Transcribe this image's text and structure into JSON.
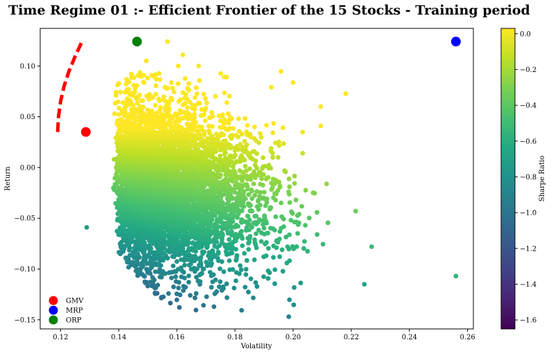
{
  "chart_data": {
    "type": "scatter",
    "title": "Time Regime 01 :- Efficient Frontier of the 15 Stocks - Training period",
    "xlabel": "Volatility",
    "ylabel": "Return",
    "xlim": [
      0.113,
      0.262
    ],
    "ylim": [
      -0.159,
      0.137
    ],
    "xticks": [
      0.12,
      0.14,
      0.16,
      0.18,
      0.2,
      0.22,
      0.24,
      0.26
    ],
    "xtick_labels": [
      "0.12",
      "0.14",
      "0.16",
      "0.18",
      "0.20",
      "0.22",
      "0.24",
      "0.26"
    ],
    "yticks": [
      0.1,
      0.05,
      0.0,
      -0.05,
      -0.1,
      -0.15
    ],
    "ytick_labels": [
      "0.10",
      "0.05",
      "0.00",
      "−0.05",
      "−0.10",
      "−0.15"
    ],
    "grid": false,
    "colormap": "viridis",
    "colorbar": {
      "label": "Sharpe Ratio",
      "range": [
        -1.65,
        0.03
      ],
      "ticks": [
        0.0,
        -0.2,
        -0.4,
        -0.6,
        -0.8,
        -1.0,
        -1.2,
        -1.4,
        -1.6
      ],
      "tick_labels": [
        "0.0",
        "−0.2",
        "−0.4",
        "−0.6",
        "−0.8",
        "−1.0",
        "−1.2",
        "−1.4",
        "−1.6"
      ]
    },
    "portfolio_cloud": {
      "description_of_shape": "random portfolios; dense core around volatility 0.14-0.18, return -0.10 to 0.07; sparse tail to volatility 0.227",
      "outliers": [
        {
          "x": 0.1568,
          "y": 0.124
        },
        {
          "x": 0.1621,
          "y": 0.111
        },
        {
          "x": 0.1495,
          "y": 0.105
        },
        {
          "x": 0.1605,
          "y": 0.1
        },
        {
          "x": 0.1675,
          "y": 0.1
        },
        {
          "x": 0.1925,
          "y": 0.079
        },
        {
          "x": 0.2095,
          "y": 0.06
        },
        {
          "x": 0.2095,
          "y": 0.041
        },
        {
          "x": 0.2215,
          "y": -0.043
        },
        {
          "x": 0.227,
          "y": -0.078
        },
        {
          "x": 0.2245,
          "y": -0.115
        },
        {
          "x": 0.256,
          "y": -0.107
        },
        {
          "x": 0.129,
          "y": -0.059
        },
        {
          "x": 0.1985,
          "y": -0.147
        }
      ]
    },
    "frontier": {
      "style": "red dashed",
      "color": "#ff0000",
      "points": [
        {
          "x": 0.119,
          "y": 0.035
        },
        {
          "x": 0.1193,
          "y": 0.05
        },
        {
          "x": 0.12,
          "y": 0.065
        },
        {
          "x": 0.1212,
          "y": 0.08
        },
        {
          "x": 0.1228,
          "y": 0.094
        },
        {
          "x": 0.1248,
          "y": 0.108
        },
        {
          "x": 0.1272,
          "y": 0.123
        }
      ]
    },
    "special_points": [
      {
        "name": "GMV",
        "x": 0.1287,
        "y": 0.035,
        "color": "#ff0000"
      },
      {
        "name": "MRP",
        "x": 0.256,
        "y": 0.124,
        "color": "#0000ff"
      },
      {
        "name": "ORP",
        "x": 0.1463,
        "y": 0.124,
        "color": "#008000"
      }
    ],
    "legend": {
      "position": "lower-left",
      "entries": [
        {
          "label": "GMV",
          "color": "#ff0000"
        },
        {
          "label": "MRP",
          "color": "#0000ff"
        },
        {
          "label": "ORP",
          "color": "#008000"
        }
      ]
    }
  }
}
